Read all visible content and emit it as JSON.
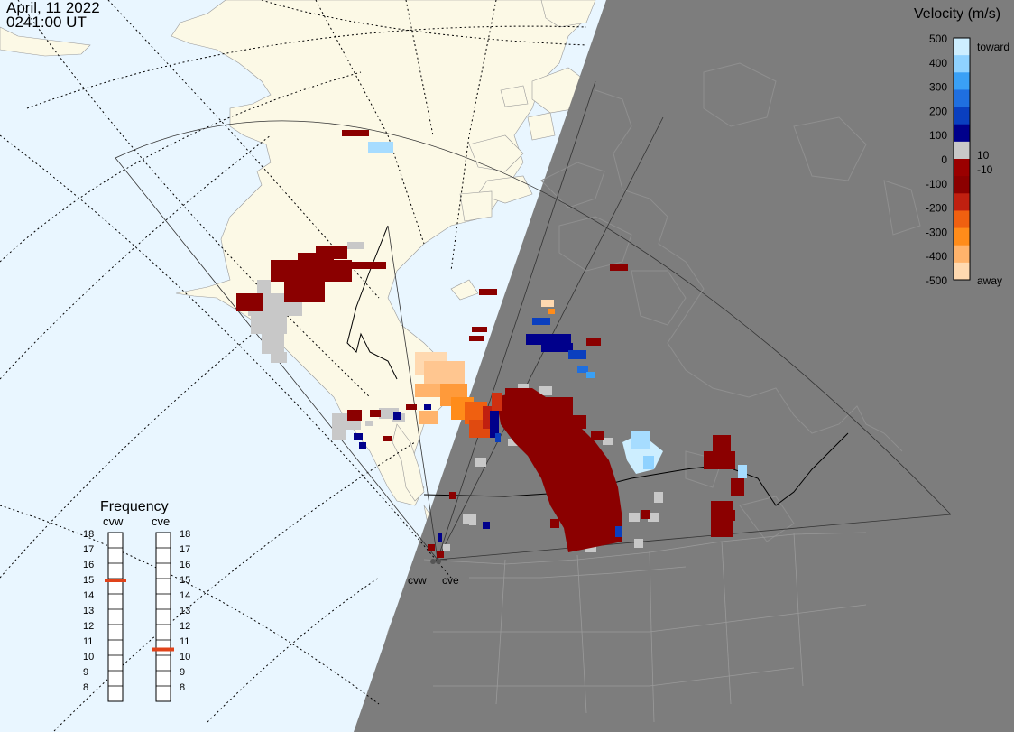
{
  "header": {
    "date": "April, 11 2022",
    "time": "0241:00 UT"
  },
  "colorbar": {
    "title": "Velocity (m/s)",
    "ticks": [
      "500",
      "400",
      "300",
      "200",
      "100",
      "0",
      "-100",
      "-200",
      "-300",
      "-400",
      "-500"
    ],
    "label_toward": "toward",
    "label_away": "away",
    "label_pos": "10",
    "label_neg": "-10",
    "colors": [
      "#ffd9b0",
      "#ffb36b",
      "#ff8c1a",
      "#f06010",
      "#c02010",
      "#8b0000",
      "#9a0000",
      "#c8c8c8",
      "#00008b",
      "#0a3fbf",
      "#1f6fe0",
      "#3aa0f5",
      "#8fd2ff",
      "#cdeeff"
    ]
  },
  "frequency": {
    "title": "Frequency",
    "radars": [
      {
        "code": "cvw",
        "value": 15
      },
      {
        "code": "cve",
        "value": 10.5
      }
    ],
    "scale": [
      "18",
      "17",
      "16",
      "15",
      "14",
      "13",
      "12",
      "11",
      "10",
      "9",
      "8"
    ],
    "marker_color": "#e0431a"
  },
  "radar_labels": {
    "west": "cvw",
    "east": "cve"
  },
  "map_colors": {
    "ocean": "#e9f6ff",
    "land": "#fcf9e6",
    "night": "#7d7d7d",
    "ground_scatter": "#c8c8c8"
  }
}
